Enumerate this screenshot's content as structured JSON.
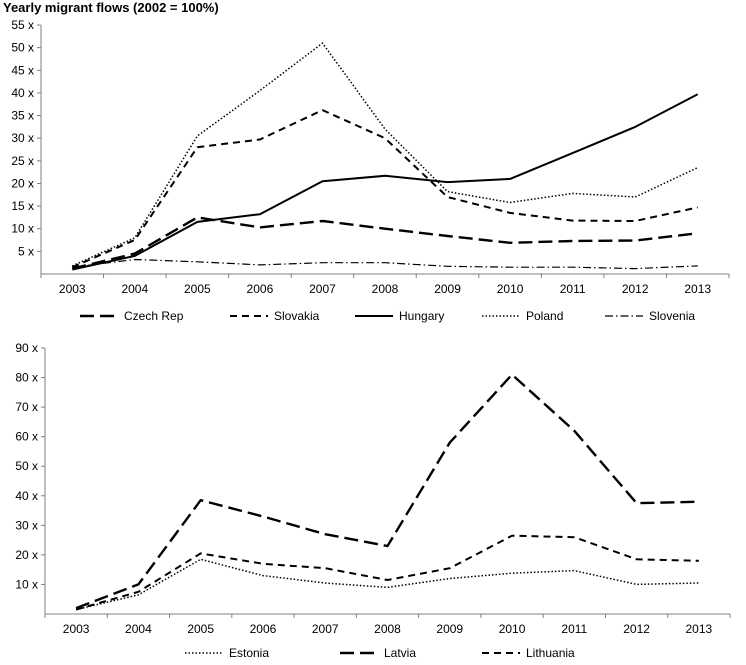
{
  "title": "Yearly migrant flows (2002 = 100%)",
  "chart_data": [
    {
      "type": "line",
      "categories": [
        "2003",
        "2004",
        "2005",
        "2006",
        "2007",
        "2008",
        "2009",
        "2010",
        "2011",
        "2012",
        "2013"
      ],
      "ylim": [
        0,
        55
      ],
      "yticks": [
        5,
        10,
        15,
        20,
        25,
        30,
        35,
        40,
        45,
        50,
        55
      ],
      "ytick_labels": [
        "5 x",
        "10 x",
        "15 x",
        "20 x",
        "25 x",
        "30 x",
        "35 x",
        "40 x",
        "45 x",
        "50 x",
        "55 x"
      ],
      "grid": false,
      "legend_position": "bottom",
      "series": [
        {
          "name": "Czech Rep",
          "style": "longdash",
          "values": [
            1.2,
            4.5,
            12.5,
            10.3,
            11.7,
            10.0,
            8.4,
            6.9,
            7.3,
            7.4,
            9.0
          ]
        },
        {
          "name": "Slovakia",
          "style": "dash",
          "values": [
            1.5,
            7.5,
            28.0,
            29.7,
            36.2,
            30.0,
            17.0,
            13.5,
            11.8,
            11.7,
            14.7
          ]
        },
        {
          "name": "Hungary",
          "style": "solid",
          "values": [
            1.0,
            4.0,
            11.5,
            13.2,
            20.5,
            21.7,
            20.3,
            21.0,
            26.7,
            32.5,
            39.7
          ]
        },
        {
          "name": "Poland",
          "style": "dotted",
          "values": [
            1.8,
            8.0,
            30.5,
            40.5,
            51.0,
            32.0,
            18.2,
            15.8,
            17.8,
            17.0,
            23.5
          ]
        },
        {
          "name": "Slovenia",
          "style": "dashdot",
          "values": [
            1.5,
            3.2,
            2.7,
            2.0,
            2.5,
            2.5,
            1.7,
            1.5,
            1.5,
            1.2,
            1.8
          ]
        }
      ]
    },
    {
      "type": "line",
      "categories": [
        "2003",
        "2004",
        "2005",
        "2006",
        "2007",
        "2008",
        "2009",
        "2010",
        "2011",
        "2012",
        "2013"
      ],
      "ylim": [
        0,
        90
      ],
      "yticks": [
        10,
        20,
        30,
        40,
        50,
        60,
        70,
        80,
        90
      ],
      "ytick_labels": [
        "10 x",
        "20 x",
        "30 x",
        "40 x",
        "50 x",
        "60 x",
        "70 x",
        "80 x",
        "90 x"
      ],
      "grid": false,
      "legend_position": "bottom",
      "series": [
        {
          "name": "Estonia",
          "style": "dotted",
          "values": [
            1.5,
            6.5,
            18.5,
            13.0,
            10.5,
            9.0,
            12.0,
            13.8,
            14.7,
            10.0,
            10.5
          ]
        },
        {
          "name": "Latvia",
          "style": "longdash",
          "values": [
            2.0,
            10.0,
            38.5,
            33.0,
            27.0,
            23.0,
            58.0,
            81.0,
            62.0,
            37.5,
            38.0
          ]
        },
        {
          "name": "Lithuania",
          "style": "dash",
          "values": [
            1.5,
            7.5,
            20.5,
            17.0,
            15.5,
            11.5,
            15.5,
            26.5,
            26.0,
            18.5,
            18.0
          ]
        }
      ]
    }
  ]
}
